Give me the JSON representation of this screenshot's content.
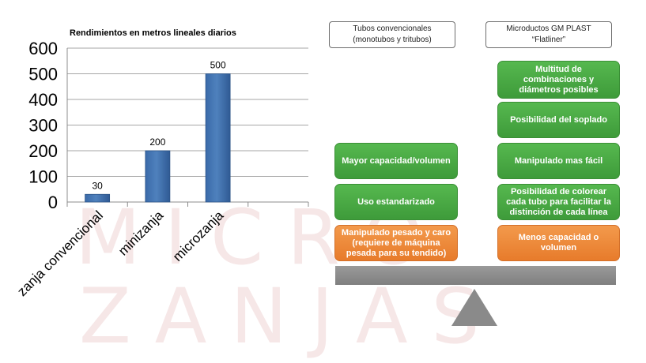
{
  "watermark": {
    "line1": "MICRO",
    "line2": "ZANJAS"
  },
  "chart_data": {
    "type": "bar",
    "title": "Rendimientos en metros lineales diarios",
    "categories": [
      "zanja convencional",
      "minizanja",
      "microzanja"
    ],
    "values": [
      30,
      200,
      500
    ],
    "data_labels": [
      "30",
      "200",
      "500"
    ],
    "ylim": [
      0,
      600
    ],
    "yticks": [
      0,
      100,
      200,
      300,
      400,
      500,
      600
    ],
    "grid": true,
    "bar_color": "#4f81bd",
    "xlabel": "",
    "ylabel": ""
  },
  "comparison": {
    "left_header": {
      "line1": "Tubos convencionales",
      "line2": "(monotubos y tritubos)"
    },
    "right_header": {
      "line1": "Microductos GM PLAST",
      "line2": "“Flatliner”"
    },
    "left_items": [
      {
        "text": "Mayor capacidad/volumen",
        "type": "advantage"
      },
      {
        "text": "Uso estandarizado",
        "type": "advantage"
      },
      {
        "text": "Manipulado pesado y caro (requiere de máquina pesada para su tendido)",
        "type": "disadvantage"
      }
    ],
    "right_items": [
      {
        "text": "Multitud de combinaciones y diámetros posibles",
        "type": "advantage"
      },
      {
        "text": "Posibilidad del soplado",
        "type": "advantage"
      },
      {
        "text": "Manipulado mas fácil",
        "type": "advantage"
      },
      {
        "text": "Posibilidad de colorear cada tubo para facilitar la distinción de cada línea",
        "type": "advantage"
      },
      {
        "text": "Menos capacidad o volumen",
        "type": "disadvantage"
      }
    ],
    "colors": {
      "advantage": "#4aab45",
      "disadvantage": "#ec8a3a",
      "scale": "#8c8c8c"
    }
  }
}
